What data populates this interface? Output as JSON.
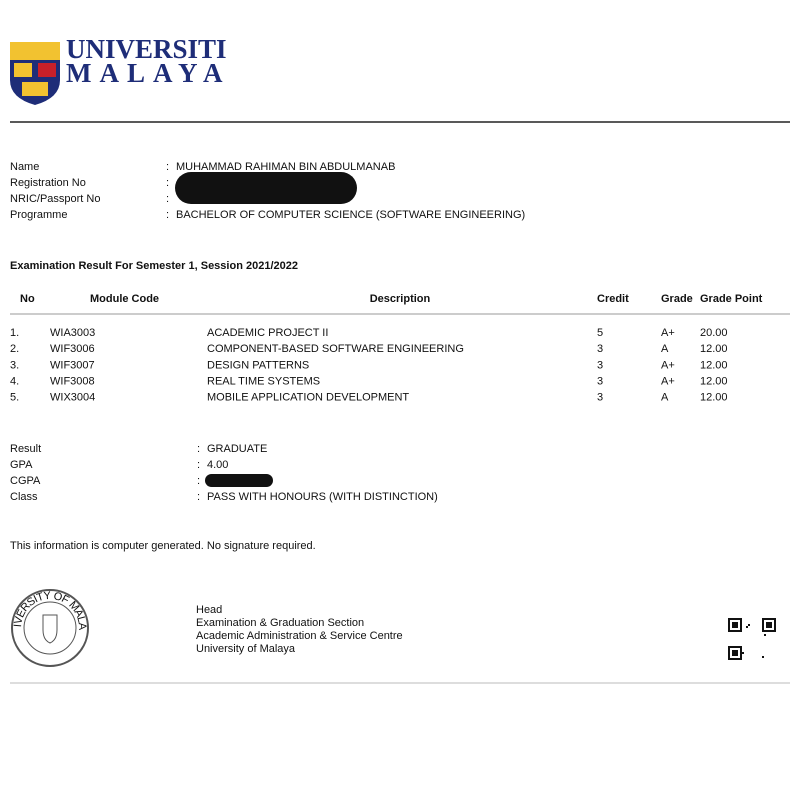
{
  "header": {
    "line1": "UNIVERSITI",
    "line2": "MALAYA"
  },
  "separator": ":",
  "student": [
    {
      "label": "Name",
      "value": "MUHAMMAD RAHIMAN BIN ABDULMANAB"
    },
    {
      "label": "Registration No"
    },
    {
      "label": "NRIC/Passport No"
    },
    {
      "label": "Programme",
      "value": "BACHELOR OF COMPUTER SCIENCE (SOFTWARE ENGINEERING)"
    }
  ],
  "section_title": "Examination Result For Semester 1, Session 2021/2022",
  "table": {
    "columns": [
      "No",
      "Module Code",
      "Description",
      "Credit",
      "Grade",
      "Grade Point"
    ],
    "rows": [
      [
        "1.",
        "WIA3003",
        "ACADEMIC PROJECT II",
        "5",
        "A+",
        "20.00"
      ],
      [
        "2.",
        "WIF3006",
        "COMPONENT-BASED SOFTWARE ENGINEERING",
        "3",
        "A",
        "12.00"
      ],
      [
        "3.",
        "WIF3007",
        "DESIGN PATTERNS",
        "3",
        "A+",
        "12.00"
      ],
      [
        "4.",
        "WIF3008",
        "REAL TIME SYSTEMS",
        "3",
        "A+",
        "12.00"
      ],
      [
        "5.",
        "WIX3004",
        "MOBILE APPLICATION DEVELOPMENT",
        "3",
        "A",
        "12.00"
      ]
    ]
  },
  "result": [
    {
      "label": "Result",
      "value": "GRADUATE"
    },
    {
      "label": "GPA",
      "value": "4.00"
    },
    {
      "label": "CGPA"
    },
    {
      "label": "Class",
      "value": "PASS WITH HONOURS (WITH DISTINCTION)"
    }
  ],
  "note": "This information is computer generated. No signature required.",
  "seal": {
    "text": "UNIVERSITY OF MALAYA"
  },
  "signatory": [
    "Head",
    "Examination & Graduation Section",
    "Academic Administration & Service Centre",
    "University of Malaya"
  ]
}
